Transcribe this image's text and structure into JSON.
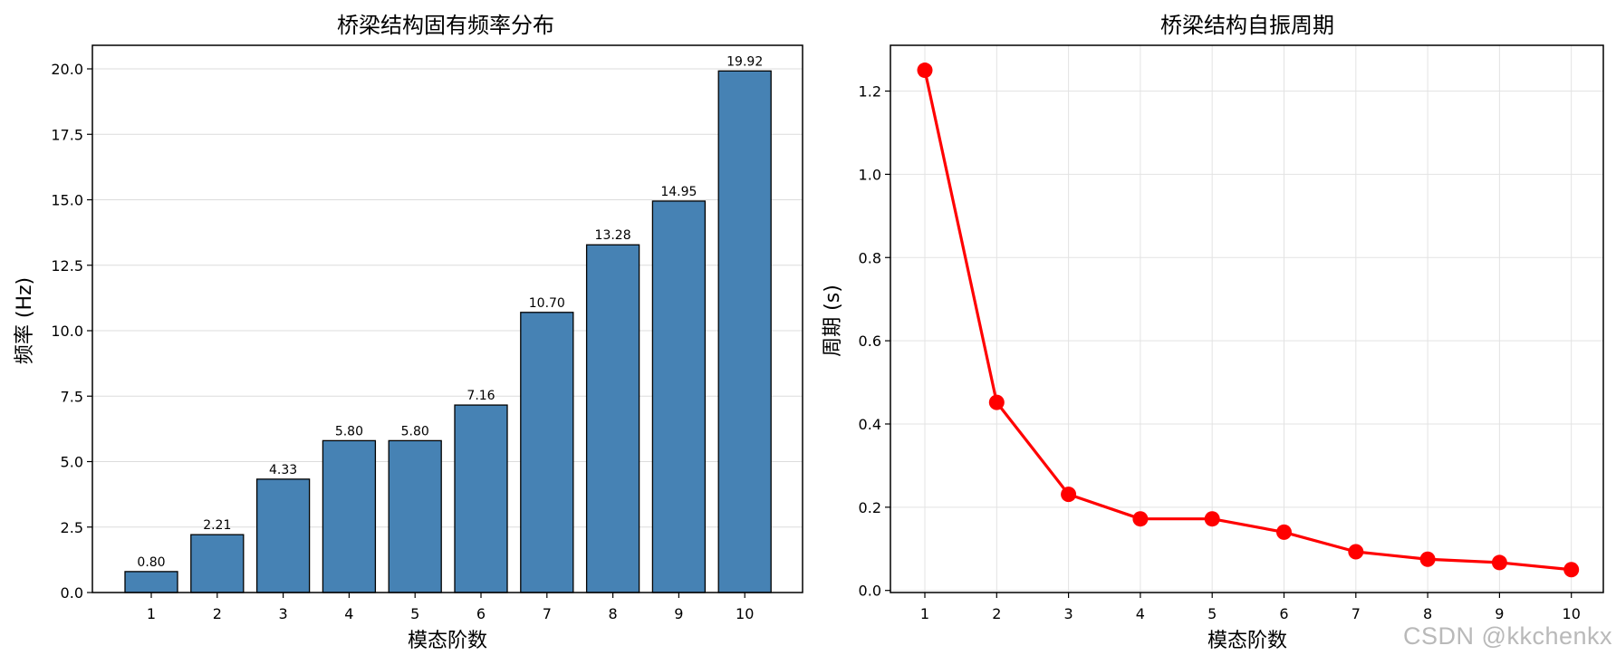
{
  "chart_data": [
    {
      "type": "bar",
      "title": "桥梁结构固有频率分布",
      "xlabel": "模态阶数",
      "ylabel": "频率 (Hz)",
      "categories": [
        "1",
        "2",
        "3",
        "4",
        "5",
        "6",
        "7",
        "8",
        "9",
        "10"
      ],
      "values": [
        0.8,
        2.21,
        4.33,
        5.8,
        5.8,
        7.16,
        10.7,
        13.28,
        14.95,
        19.92
      ],
      "data_labels": [
        "0.80",
        "2.21",
        "4.33",
        "5.80",
        "5.80",
        "7.16",
        "10.70",
        "13.28",
        "14.95",
        "19.92"
      ],
      "ylim": [
        0,
        20.9
      ],
      "yticks": [
        0,
        2.5,
        5,
        7.5,
        10,
        12.5,
        15,
        17.5,
        20
      ],
      "ytick_labels": [
        "0.0",
        "2.5",
        "5.0",
        "7.5",
        "10.0",
        "12.5",
        "15.0",
        "17.5",
        "20.0"
      ],
      "grid": "y",
      "bar_color": "#4682b4",
      "edge_color": "#000000"
    },
    {
      "type": "line",
      "title": "桥梁结构自振周期",
      "xlabel": "模态阶数",
      "ylabel": "周期 (s)",
      "x": [
        1,
        2,
        3,
        4,
        5,
        6,
        7,
        8,
        9,
        10
      ],
      "x_labels": [
        "1",
        "2",
        "3",
        "4",
        "5",
        "6",
        "7",
        "8",
        "9",
        "10"
      ],
      "values": [
        1.25,
        0.452,
        0.231,
        0.172,
        0.172,
        0.14,
        0.093,
        0.075,
        0.067,
        0.05
      ],
      "ylim": [
        -0.005,
        1.31
      ],
      "yticks": [
        0,
        0.2,
        0.4,
        0.6,
        0.8,
        1.0,
        1.2
      ],
      "ytick_labels": [
        "0.0",
        "0.2",
        "0.4",
        "0.6",
        "0.8",
        "1.0",
        "1.2"
      ],
      "grid": "both",
      "line_color": "#ff0000",
      "marker": "circle"
    }
  ],
  "watermark": "CSDN @kkchenkx"
}
